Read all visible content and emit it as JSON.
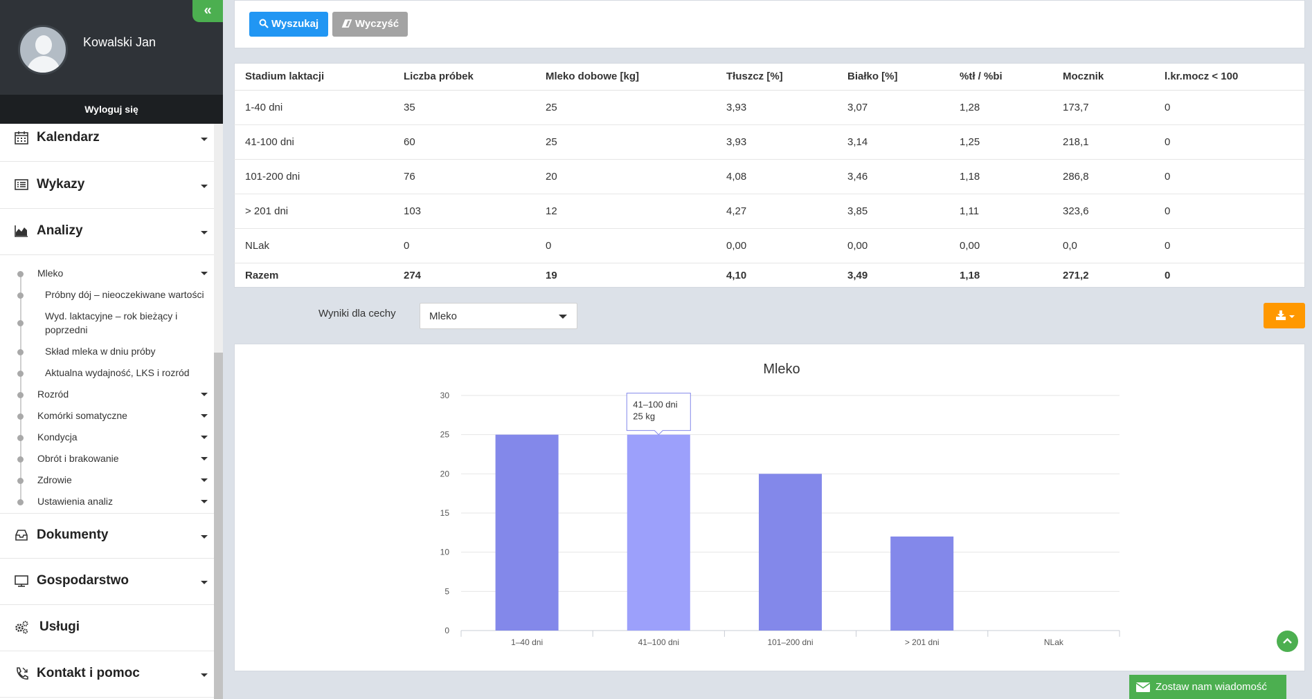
{
  "user": {
    "name": "Kowalski Jan",
    "logout_label": "Wyloguj się"
  },
  "nav": {
    "main_items": [
      {
        "label": "Kalendarz",
        "icon": "calendar-icon"
      },
      {
        "label": "Wykazy",
        "icon": "list-icon"
      },
      {
        "label": "Analizy",
        "icon": "area-chart-icon"
      },
      {
        "label": "Dokumenty",
        "icon": "inbox-icon"
      },
      {
        "label": "Gospodarstwo",
        "icon": "monitor-icon"
      },
      {
        "label": "Usługi",
        "icon": "cogs-icon"
      },
      {
        "label": "Kontakt i pomoc",
        "icon": "phone-icon"
      }
    ],
    "analizy_sub": [
      "Mleko",
      "Rozród",
      "Komórki somatyczne",
      "Kondycja",
      "Obrót i brakowanie",
      "Zdrowie",
      "Ustawienia analiz"
    ],
    "mleko_leaves": [
      "Próbny dój – nieoczekiwane wartości",
      "Wyd. laktacyjne – rok bieżący i poprzedni",
      "Skład mleka w dniu próby",
      "Aktualna wydajność, LKS i rozród"
    ]
  },
  "toolbar": {
    "search_label": "Wyszukaj",
    "clear_label": "Wyczyść"
  },
  "table": {
    "headers": [
      "Stadium laktacji",
      "Liczba próbek",
      "Mleko dobowe [kg]",
      "Tłuszcz [%]",
      "Białko [%]",
      "%tł / %bi",
      "Mocznik",
      "l.kr.mocz < 100"
    ],
    "rows": [
      [
        "1-40 dni",
        "35",
        "25",
        "3,93",
        "3,07",
        "1,28",
        "173,7",
        "0"
      ],
      [
        "41-100 dni",
        "60",
        "25",
        "3,93",
        "3,14",
        "1,25",
        "218,1",
        "0"
      ],
      [
        "101-200 dni",
        "76",
        "20",
        "4,08",
        "3,46",
        "1,18",
        "286,8",
        "0"
      ],
      [
        "> 201 dni",
        "103",
        "12",
        "4,27",
        "3,85",
        "1,11",
        "323,6",
        "0"
      ],
      [
        "NLak",
        "0",
        "0",
        "0,00",
        "0,00",
        "0,00",
        "0,0",
        "0"
      ]
    ],
    "total": [
      "Razem",
      "274",
      "19",
      "4,10",
      "3,49",
      "1,18",
      "271,2",
      "0"
    ]
  },
  "filter": {
    "label": "Wyniki dla cechy",
    "selected": "Mleko"
  },
  "tooltip": {
    "line1": "41–100 dni",
    "line2": "25 kg"
  },
  "message_bar": {
    "label": "Zostaw nam wiadomość"
  },
  "colors": {
    "bar": "#8388ea",
    "bar_hover": "#9ca0fb",
    "accent_green": "#4caf50",
    "search_blue": "#2196f3",
    "export_orange": "#ff9800"
  },
  "chart_data": {
    "type": "bar",
    "title": "Mleko",
    "categories": [
      "1–40 dni",
      "41–100 dni",
      "101–200 dni",
      "> 201 dni",
      "NLak"
    ],
    "values": [
      25,
      25,
      20,
      12,
      0
    ],
    "ylim": [
      0,
      30
    ],
    "yticks": [
      0,
      5,
      10,
      15,
      20,
      25,
      30
    ],
    "grid": true,
    "highlighted_index": 1
  }
}
